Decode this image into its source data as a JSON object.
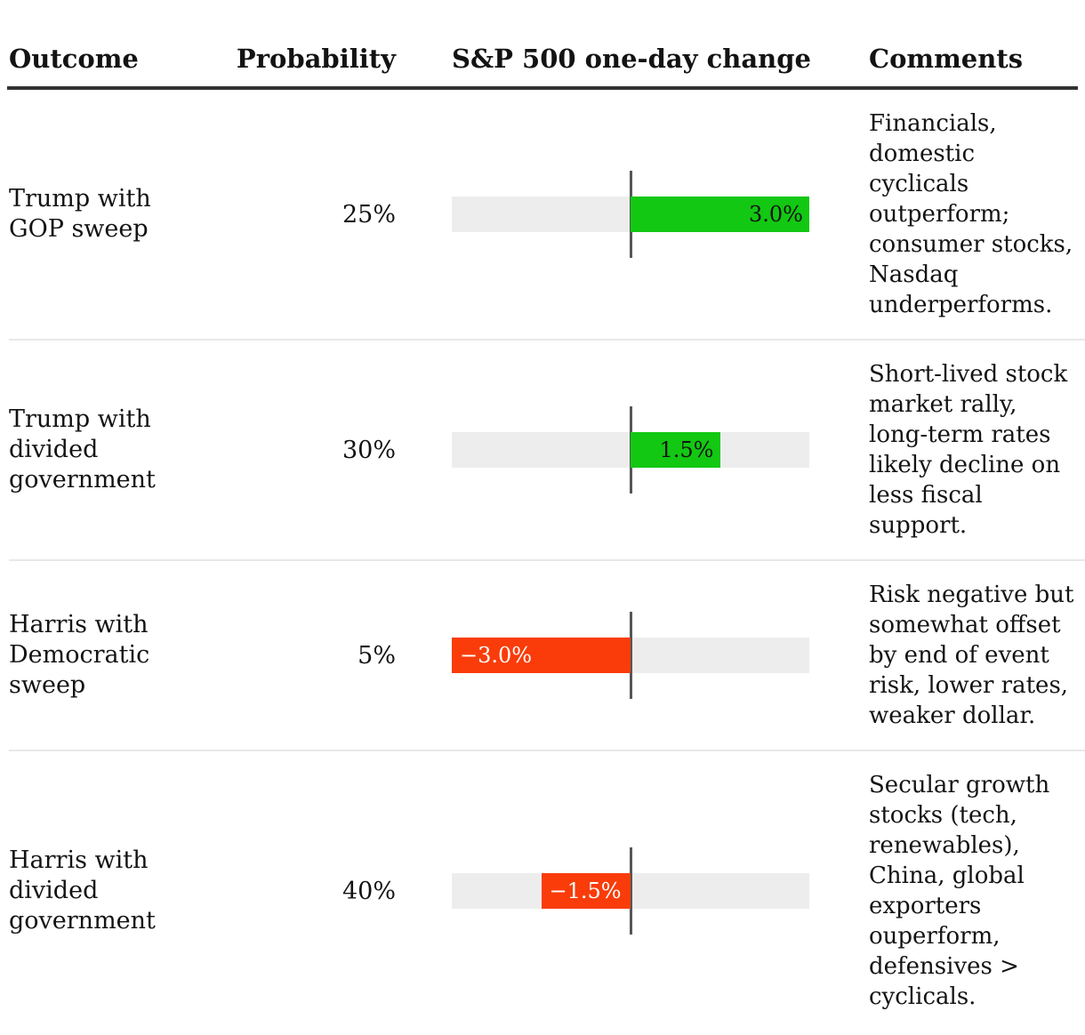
{
  "table": {
    "headers": {
      "outcome": "Outcome",
      "probability": "Probability",
      "change": "S&P 500 one-day change",
      "comments": "Comments"
    },
    "rows": [
      {
        "outcome": "Trump with\nGOP sweep",
        "probability": "25%",
        "change_value": 3.0,
        "change_label": "3.0%",
        "comments": "Financials,\ndomestic\ncyclicals\noutperform;\nconsumer stocks,\nNasdaq\nunderperforms."
      },
      {
        "outcome": "Trump with\ndivided\ngovernment",
        "probability": "30%",
        "change_value": 1.5,
        "change_label": "1.5%",
        "comments": "Short-lived stock\nmarket rally,\nlong-term rates\nlikely decline on\nless fiscal\nsupport."
      },
      {
        "outcome": "Harris with\nDemocratic\nsweep",
        "probability": "5%",
        "change_value": -3.0,
        "change_label": "−3.0%",
        "comments": "Risk negative but\nsomewhat offset\nby end of event\nrisk, lower rates,\nweaker dollar."
      },
      {
        "outcome": "Harris with\ndivided\ngovernment",
        "probability": "40%",
        "change_value": -1.5,
        "change_label": "−1.5%",
        "comments": "Secular growth\nstocks (tech,\nrenewables),\nChina, global\nexporters\nouperform,\ndefensives >\ncyclicals."
      }
    ]
  },
  "colors": {
    "positive": "#12c812",
    "negative": "#f93c0a",
    "track": "#ededed",
    "zero_line": "#565656",
    "header_rule": "#333333",
    "row_divider": "#e8e8e8"
  },
  "chart_data": {
    "type": "bar",
    "orientation": "horizontal",
    "title": "S&P 500 one-day change",
    "categories": [
      "Trump with GOP sweep",
      "Trump with divided government",
      "Harris with Democratic sweep",
      "Harris with divided government"
    ],
    "series": [
      {
        "name": "Probability",
        "unit": "%",
        "values": [
          25,
          30,
          5,
          40
        ]
      },
      {
        "name": "S&P 500 one-day change",
        "unit": "%",
        "values": [
          3.0,
          1.5,
          -3.0,
          -1.5
        ]
      }
    ],
    "bar_labels": [
      "3.0%",
      "1.5%",
      "−3.0%",
      "−1.5%"
    ],
    "xlim": [
      -3,
      3
    ],
    "grid": false,
    "legend": false,
    "positive_color": "#12c812",
    "negative_color": "#f93c0a"
  }
}
